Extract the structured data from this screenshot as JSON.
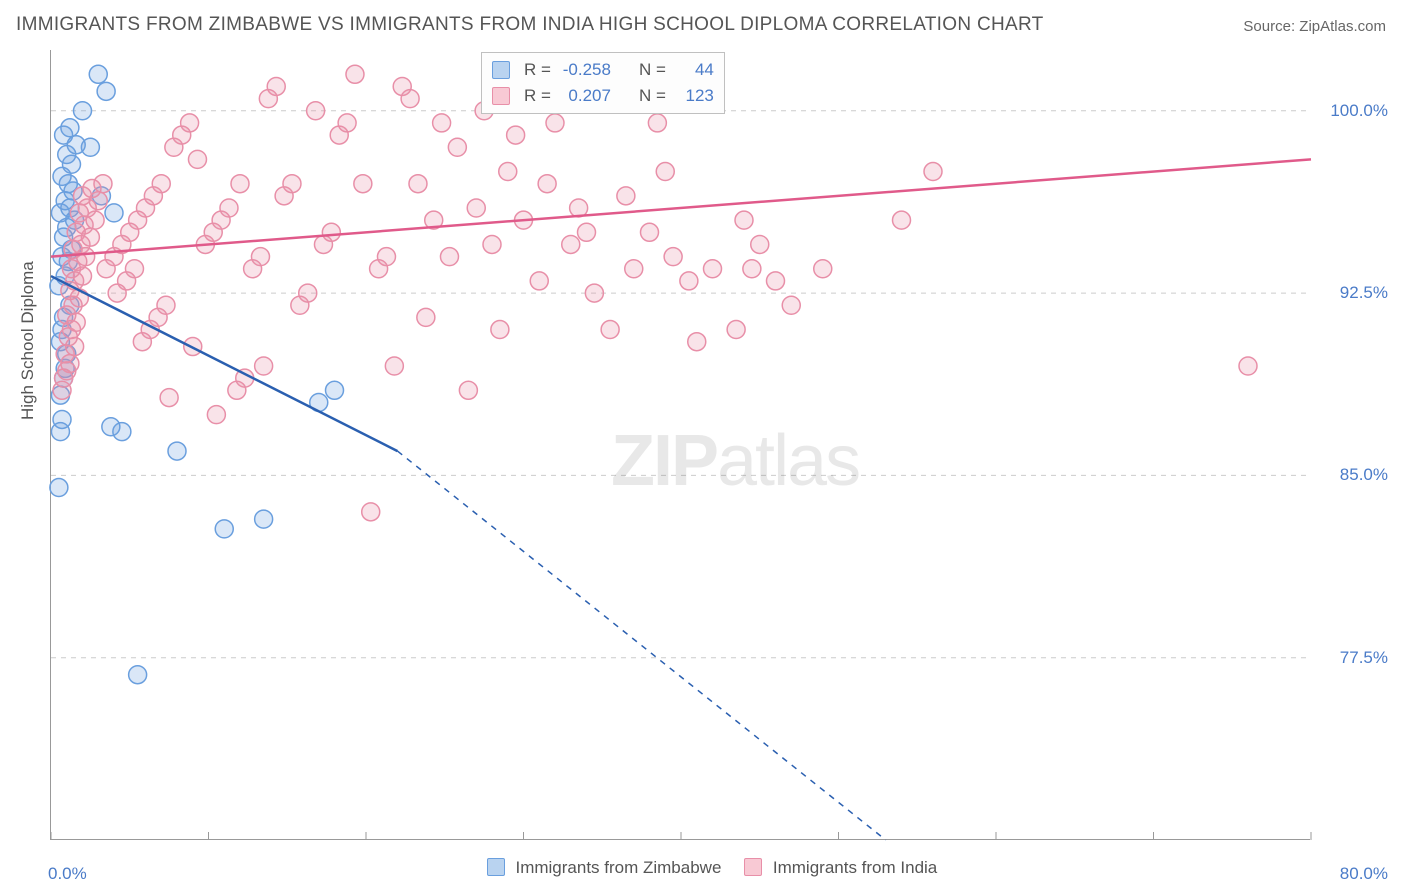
{
  "title": "IMMIGRANTS FROM ZIMBABWE VS IMMIGRANTS FROM INDIA HIGH SCHOOL DIPLOMA CORRELATION CHART",
  "source_prefix": "Source: ",
  "source_name": "ZipAtlas.com",
  "watermark_a": "ZIP",
  "watermark_b": "atlas",
  "chart": {
    "type": "scatter-with-regression",
    "ylabel": "High School Diploma",
    "xlim": [
      0.0,
      80.0
    ],
    "ylim": [
      70.0,
      102.5
    ],
    "xlim_labels": [
      "0.0%",
      "80.0%"
    ],
    "ytick_values": [
      77.5,
      85.0,
      92.5,
      100.0
    ],
    "ytick_labels": [
      "77.5%",
      "85.0%",
      "92.5%",
      "100.0%"
    ],
    "xtick_values": [
      0,
      10,
      20,
      30,
      40,
      50,
      60,
      70,
      80
    ],
    "background_color": "#ffffff",
    "grid_color": "#cccccc",
    "axis_color": "#999999",
    "marker_radius": 9,
    "marker_stroke_width": 1.5,
    "marker_fill_opacity": 0.25,
    "line_width": 2.5,
    "series": [
      {
        "name": "Immigrants from Zimbabwe",
        "swatch_fill": "#b9d3f0",
        "swatch_border": "#6a9fde",
        "marker_stroke": "#6a9fde",
        "marker_fill": "#6a9fde",
        "line_color": "#2a5fb0",
        "R": "-0.258",
        "N": "44",
        "regression": {
          "x1": 0,
          "y1": 93.2,
          "x2_solid": 22,
          "y2_solid": 86.0,
          "x2_dash": 53,
          "y2_dash": 70.0
        },
        "points": [
          [
            0.5,
            84.5
          ],
          [
            0.6,
            86.8
          ],
          [
            0.7,
            87.3
          ],
          [
            0.8,
            89.0
          ],
          [
            0.9,
            89.4
          ],
          [
            1.0,
            90.0
          ],
          [
            0.6,
            90.5
          ],
          [
            0.7,
            91.0
          ],
          [
            0.8,
            91.5
          ],
          [
            1.2,
            92.0
          ],
          [
            0.5,
            92.8
          ],
          [
            0.9,
            93.2
          ],
          [
            1.1,
            93.8
          ],
          [
            0.7,
            94.0
          ],
          [
            1.3,
            94.3
          ],
          [
            0.8,
            94.8
          ],
          [
            1.0,
            95.2
          ],
          [
            1.5,
            95.5
          ],
          [
            0.6,
            95.8
          ],
          [
            1.2,
            96.0
          ],
          [
            0.9,
            96.3
          ],
          [
            1.4,
            96.7
          ],
          [
            1.1,
            97.0
          ],
          [
            0.7,
            97.3
          ],
          [
            1.3,
            97.8
          ],
          [
            1.0,
            98.2
          ],
          [
            1.6,
            98.6
          ],
          [
            0.8,
            99.0
          ],
          [
            1.2,
            99.3
          ],
          [
            2.0,
            100.0
          ],
          [
            3.0,
            101.5
          ],
          [
            3.5,
            100.8
          ],
          [
            2.5,
            98.5
          ],
          [
            3.2,
            96.5
          ],
          [
            4.0,
            95.8
          ],
          [
            3.8,
            87.0
          ],
          [
            4.5,
            86.8
          ],
          [
            5.5,
            76.8
          ],
          [
            8.0,
            86.0
          ],
          [
            11.0,
            82.8
          ],
          [
            13.5,
            83.2
          ],
          [
            17.0,
            88.0
          ],
          [
            18.0,
            88.5
          ],
          [
            0.6,
            88.3
          ]
        ]
      },
      {
        "name": "Immigrants from India",
        "swatch_fill": "#f8c9d4",
        "swatch_border": "#e88fa8",
        "marker_stroke": "#e88fa8",
        "marker_fill": "#e88fa8",
        "line_color": "#e05a8a",
        "R": "0.207",
        "N": "123",
        "regression": {
          "x1": 0,
          "y1": 94.0,
          "x2_solid": 80,
          "y2_solid": 98.0,
          "x2_dash": 80,
          "y2_dash": 98.0
        },
        "points": [
          [
            0.7,
            88.5
          ],
          [
            0.8,
            89.0
          ],
          [
            1.0,
            89.3
          ],
          [
            1.2,
            89.6
          ],
          [
            0.9,
            90.0
          ],
          [
            1.5,
            90.3
          ],
          [
            1.1,
            90.7
          ],
          [
            1.3,
            91.0
          ],
          [
            1.6,
            91.3
          ],
          [
            1.0,
            91.6
          ],
          [
            1.4,
            92.0
          ],
          [
            1.8,
            92.3
          ],
          [
            1.2,
            92.6
          ],
          [
            1.5,
            93.0
          ],
          [
            2.0,
            93.2
          ],
          [
            1.3,
            93.5
          ],
          [
            1.7,
            93.8
          ],
          [
            2.2,
            94.0
          ],
          [
            1.4,
            94.3
          ],
          [
            1.9,
            94.5
          ],
          [
            2.5,
            94.8
          ],
          [
            1.6,
            95.0
          ],
          [
            2.1,
            95.3
          ],
          [
            2.8,
            95.5
          ],
          [
            1.8,
            95.8
          ],
          [
            2.3,
            96.0
          ],
          [
            3.0,
            96.3
          ],
          [
            2.0,
            96.5
          ],
          [
            2.6,
            96.8
          ],
          [
            3.3,
            97.0
          ],
          [
            3.5,
            93.5
          ],
          [
            4.0,
            94.0
          ],
          [
            4.5,
            94.5
          ],
          [
            5.0,
            95.0
          ],
          [
            5.5,
            95.5
          ],
          [
            6.0,
            96.0
          ],
          [
            6.5,
            96.5
          ],
          [
            7.0,
            97.0
          ],
          [
            4.2,
            92.5
          ],
          [
            4.8,
            93.0
          ],
          [
            5.3,
            93.5
          ],
          [
            5.8,
            90.5
          ],
          [
            6.3,
            91.0
          ],
          [
            6.8,
            91.5
          ],
          [
            7.3,
            92.0
          ],
          [
            7.8,
            98.5
          ],
          [
            8.3,
            99.0
          ],
          [
            8.8,
            99.5
          ],
          [
            9.3,
            98.0
          ],
          [
            9.8,
            94.5
          ],
          [
            10.3,
            95.0
          ],
          [
            10.8,
            95.5
          ],
          [
            11.3,
            96.0
          ],
          [
            11.8,
            88.5
          ],
          [
            12.3,
            89.0
          ],
          [
            12.8,
            93.5
          ],
          [
            13.3,
            94.0
          ],
          [
            13.8,
            100.5
          ],
          [
            14.3,
            101.0
          ],
          [
            14.8,
            96.5
          ],
          [
            15.3,
            97.0
          ],
          [
            15.8,
            92.0
          ],
          [
            16.3,
            92.5
          ],
          [
            16.8,
            100.0
          ],
          [
            17.3,
            94.5
          ],
          [
            17.8,
            95.0
          ],
          [
            18.3,
            99.0
          ],
          [
            18.8,
            99.5
          ],
          [
            19.3,
            101.5
          ],
          [
            19.8,
            97.0
          ],
          [
            20.3,
            83.5
          ],
          [
            20.8,
            93.5
          ],
          [
            21.3,
            94.0
          ],
          [
            21.8,
            89.5
          ],
          [
            22.3,
            101.0
          ],
          [
            22.8,
            100.5
          ],
          [
            23.3,
            97.0
          ],
          [
            23.8,
            91.5
          ],
          [
            24.3,
            95.5
          ],
          [
            24.8,
            99.5
          ],
          [
            25.3,
            94.0
          ],
          [
            25.8,
            98.5
          ],
          [
            26.5,
            88.5
          ],
          [
            27.0,
            96.0
          ],
          [
            27.5,
            100.0
          ],
          [
            28.0,
            94.5
          ],
          [
            28.5,
            91.0
          ],
          [
            29.0,
            97.5
          ],
          [
            29.5,
            99.0
          ],
          [
            30.0,
            95.5
          ],
          [
            30.5,
            101.0
          ],
          [
            31.0,
            93.0
          ],
          [
            31.5,
            97.0
          ],
          [
            32.0,
            99.5
          ],
          [
            33.0,
            94.5
          ],
          [
            33.5,
            96.0
          ],
          [
            34.0,
            95.0
          ],
          [
            34.5,
            92.5
          ],
          [
            35.5,
            91.0
          ],
          [
            36.5,
            96.5
          ],
          [
            37.0,
            93.5
          ],
          [
            38.0,
            95.0
          ],
          [
            38.5,
            99.5
          ],
          [
            39.0,
            97.5
          ],
          [
            39.5,
            94.0
          ],
          [
            40.5,
            93.0
          ],
          [
            41.0,
            90.5
          ],
          [
            42.0,
            93.5
          ],
          [
            43.5,
            91.0
          ],
          [
            44.0,
            95.5
          ],
          [
            44.5,
            93.5
          ],
          [
            45.0,
            94.5
          ],
          [
            46.0,
            93.0
          ],
          [
            47.0,
            92.0
          ],
          [
            49.0,
            93.5
          ],
          [
            54.0,
            95.5
          ],
          [
            56.0,
            97.5
          ],
          [
            76.0,
            89.5
          ],
          [
            7.5,
            88.2
          ],
          [
            9.0,
            90.3
          ],
          [
            10.5,
            87.5
          ],
          [
            12.0,
            97.0
          ],
          [
            13.5,
            89.5
          ]
        ]
      }
    ]
  },
  "stats_box": {
    "R_label": "R =",
    "N_label": "N ="
  },
  "bottom_legend": {
    "label_a": "Immigrants from Zimbabwe",
    "label_b": "Immigrants from India"
  }
}
